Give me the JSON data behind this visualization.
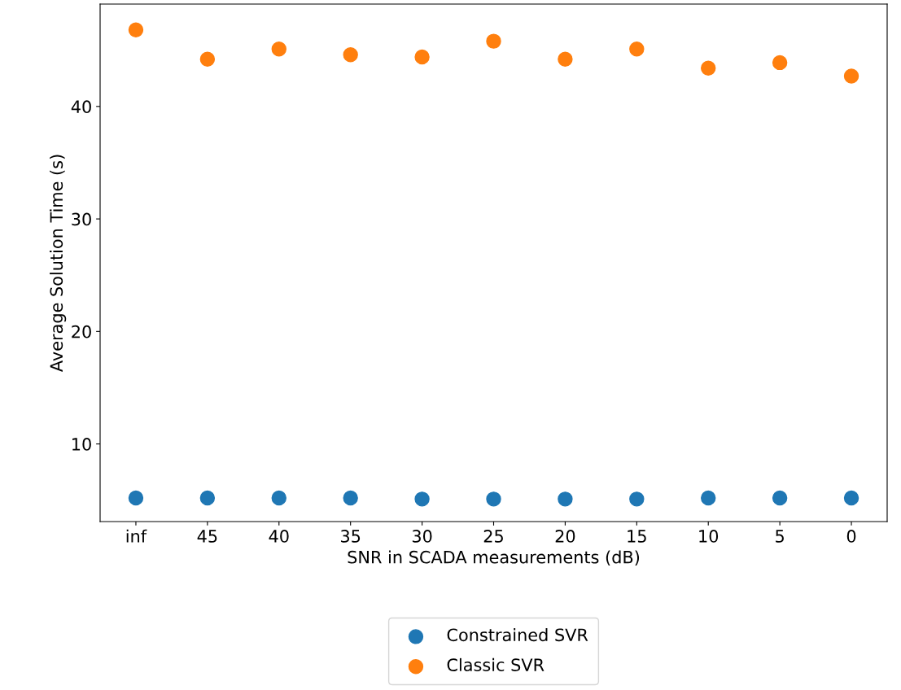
{
  "chart_data": {
    "type": "scatter",
    "xlabel": "SNR in SCADA measurements (dB)",
    "ylabel": "Average Solution Time (s)",
    "categories": [
      "inf",
      "45",
      "40",
      "35",
      "30",
      "25",
      "20",
      "15",
      "10",
      "5",
      "0"
    ],
    "series": [
      {
        "name": "Constrained SVR",
        "color": "#1f77b4",
        "values": [
          5.2,
          5.2,
          5.2,
          5.2,
          5.1,
          5.1,
          5.1,
          5.1,
          5.2,
          5.2,
          5.2
        ]
      },
      {
        "name": "Classic SVR",
        "color": "#ff7f0e",
        "values": [
          46.8,
          44.2,
          45.1,
          44.6,
          44.4,
          45.8,
          44.2,
          45.1,
          43.4,
          43.9,
          42.7
        ]
      }
    ],
    "ylim": [
      3.1,
      49.1
    ],
    "yticks": [
      10,
      20,
      30,
      40
    ],
    "grid": false,
    "legend": "bottom",
    "marker": "circle"
  }
}
